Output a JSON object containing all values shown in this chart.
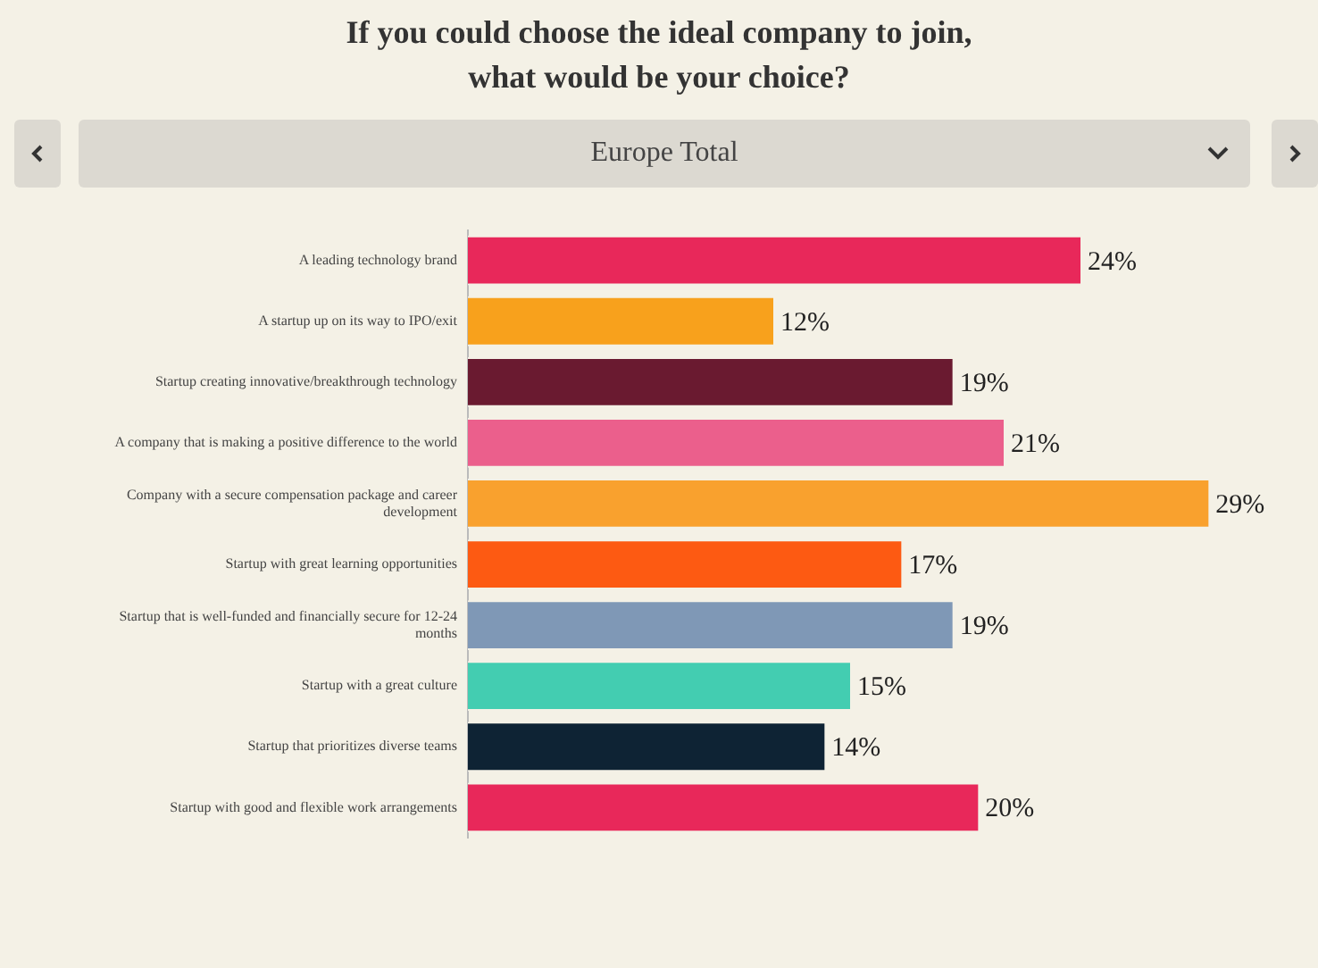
{
  "chart_data": {
    "type": "bar",
    "orientation": "horizontal",
    "title": "If you could choose the ideal company to join, what would be your choice?",
    "subtitle": "Europe Total",
    "categories": [
      "A leading technology brand",
      "A startup up on its way to IPO/exit",
      "Startup creating innovative/breakthrough technology",
      "A company that is making a positive difference to the world",
      "Company with a secure compensation package and career development",
      "Startup with great learning opportunities",
      "Startup that is well-funded and financially secure for 12-24 months",
      "Startup with a great culture",
      "Startup that prioritizes diverse teams",
      "Startup with good and flexible work arrangements"
    ],
    "values": [
      24,
      12,
      19,
      21,
      29,
      17,
      19,
      15,
      14,
      20
    ],
    "colors": [
      "#e8285a",
      "#f8a11c",
      "#6a1a30",
      "#eb5f8c",
      "#f9a12e",
      "#fd5a12",
      "#7f98b6",
      "#43cdb1",
      "#0e2334",
      "#e8285a"
    ],
    "value_labels": [
      "24%",
      "12%",
      "19%",
      "21%",
      "29%",
      "17%",
      "19%",
      "15%",
      "14%",
      "20%"
    ],
    "tick_labels": false,
    "legend": false
  }
}
